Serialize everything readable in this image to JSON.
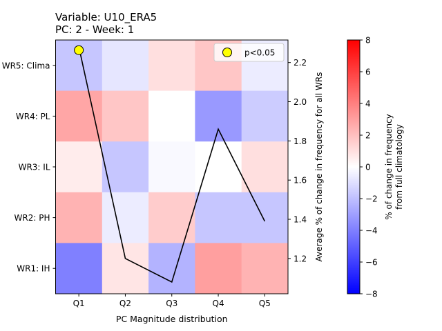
{
  "figure": {
    "title_line1": "Variable: U10_ERA5",
    "title_line2": "PC: 2 - Week: 1"
  },
  "chart_data": {
    "type": "heatmap",
    "title": "Variable: U10_ERA5\nPC: 2 - Week: 1",
    "xlabel": "PC Magnitude distribution",
    "ylabel": "",
    "x_categories": [
      "Q1",
      "Q2",
      "Q3",
      "Q4",
      "Q5"
    ],
    "y_categories": [
      "WR5: Clima",
      "WR4: PL",
      "WR3: IL",
      "WR2: PH",
      "WR1: IH"
    ],
    "values": [
      [
        -1.8,
        -0.8,
        1.0,
        1.8,
        -0.6
      ],
      [
        2.8,
        1.8,
        0.0,
        -3.2,
        -1.6
      ],
      [
        0.6,
        -1.8,
        -0.2,
        0.0,
        1.0
      ],
      [
        2.4,
        -0.6,
        1.6,
        -1.8,
        -1.8
      ],
      [
        -4.0,
        0.8,
        -2.4,
        3.0,
        2.4
      ]
    ],
    "colormap": "bwr",
    "vmin": -8,
    "vmax": 8,
    "colorbar_label_line1": "% of change in frequency",
    "colorbar_label_line2": "from full climatology",
    "colorbar_ticks": [
      "−8",
      "−6",
      "−4",
      "−2",
      "0",
      "2",
      "4",
      "6",
      "8"
    ],
    "significance_markers": [
      {
        "x": "Q1",
        "y": "WR5: Clima"
      }
    ],
    "legend": {
      "label": "p<0.05",
      "marker_color": "#ffff00",
      "placement": "top-right"
    },
    "secondary_axis": {
      "ylabel": "Average % of change in frequency for all WRs",
      "ylim": [
        1.02,
        2.315
      ],
      "ticks": [
        1.2,
        1.4,
        1.6,
        1.8,
        2.0,
        2.2
      ],
      "tick_labels": [
        "1.2",
        "1.4",
        "1.6",
        "1.8",
        "2.0",
        "2.2"
      ]
    },
    "line_series": {
      "color": "#000000",
      "x": [
        "Q1",
        "Q2",
        "Q3",
        "Q4",
        "Q5"
      ],
      "values": [
        2.28,
        1.2,
        1.08,
        1.86,
        1.39
      ]
    },
    "grid": false
  }
}
